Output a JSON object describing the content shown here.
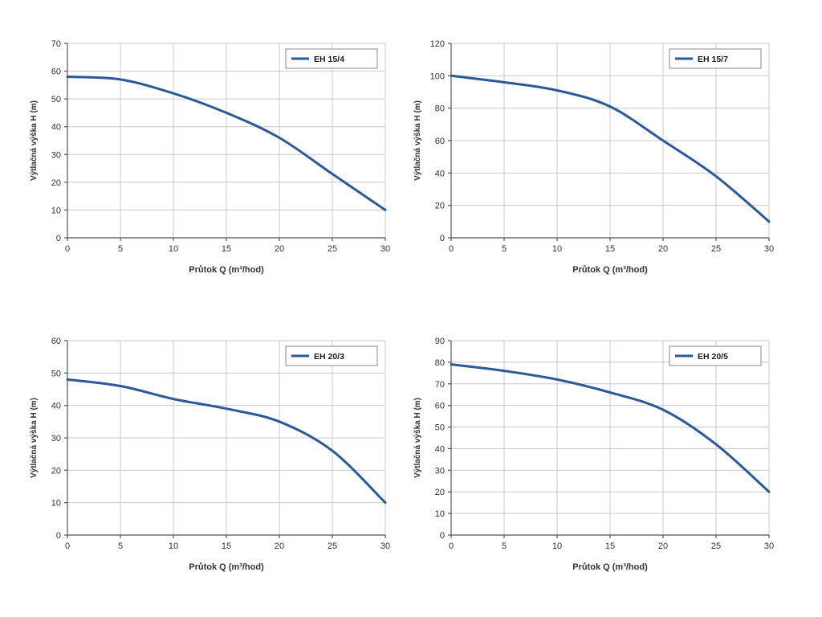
{
  "page": {
    "background_color": "#ffffff"
  },
  "charts_common": {
    "xlabel": "Průtok Q (m³/hod)",
    "ylabel": "Výtlačná výška H (m)",
    "line_color": "#2a5a9c",
    "grid_color": "#c8c8c8",
    "axis_color": "#555555",
    "text_color": "#333333",
    "legend_border_color": "#8a8a8a",
    "legend_text_color": "#1b1b1b",
    "legend_position": "top-right",
    "grid": true
  },
  "chart_data": [
    {
      "type": "line",
      "legend": "EH 15/4",
      "xlabel": "Průtok Q (m³/hod)",
      "ylabel": "Výtlačná výška H (m)",
      "x": [
        0,
        5,
        10,
        15,
        20,
        25,
        30
      ],
      "y": [
        58,
        57,
        52,
        45,
        36,
        23,
        10
      ],
      "xlim": [
        0,
        30
      ],
      "ylim": [
        0,
        70
      ],
      "xtick": 5,
      "ytick": 10
    },
    {
      "type": "line",
      "legend": "EH 15/7",
      "xlabel": "Průtok Q (m³/hod)",
      "ylabel": "Výtlačná výška H (m)",
      "x": [
        0,
        5,
        10,
        15,
        20,
        25,
        30
      ],
      "y": [
        100,
        96,
        91,
        81,
        60,
        38,
        10
      ],
      "xlim": [
        0,
        30
      ],
      "ylim": [
        0,
        120
      ],
      "xtick": 5,
      "ytick": 20
    },
    {
      "type": "line",
      "legend": "EH 20/3",
      "xlabel": "Průtok Q (m³/hod)",
      "ylabel": "Výtlačná výška H (m)",
      "x": [
        0,
        5,
        10,
        15,
        20,
        25,
        30
      ],
      "y": [
        48,
        46,
        42,
        39,
        35,
        26,
        10
      ],
      "xlim": [
        0,
        30
      ],
      "ylim": [
        0,
        60
      ],
      "xtick": 5,
      "ytick": 10
    },
    {
      "type": "line",
      "legend": "EH 20/5",
      "xlabel": "Průtok Q (m³/hod)",
      "ylabel": "Výtlačná výška H (m)",
      "x": [
        0,
        5,
        10,
        15,
        20,
        25,
        30
      ],
      "y": [
        79,
        76,
        72,
        66,
        58,
        42,
        20
      ],
      "xlim": [
        0,
        30
      ],
      "ylim": [
        0,
        90
      ],
      "xtick": 5,
      "ytick": 10
    }
  ]
}
